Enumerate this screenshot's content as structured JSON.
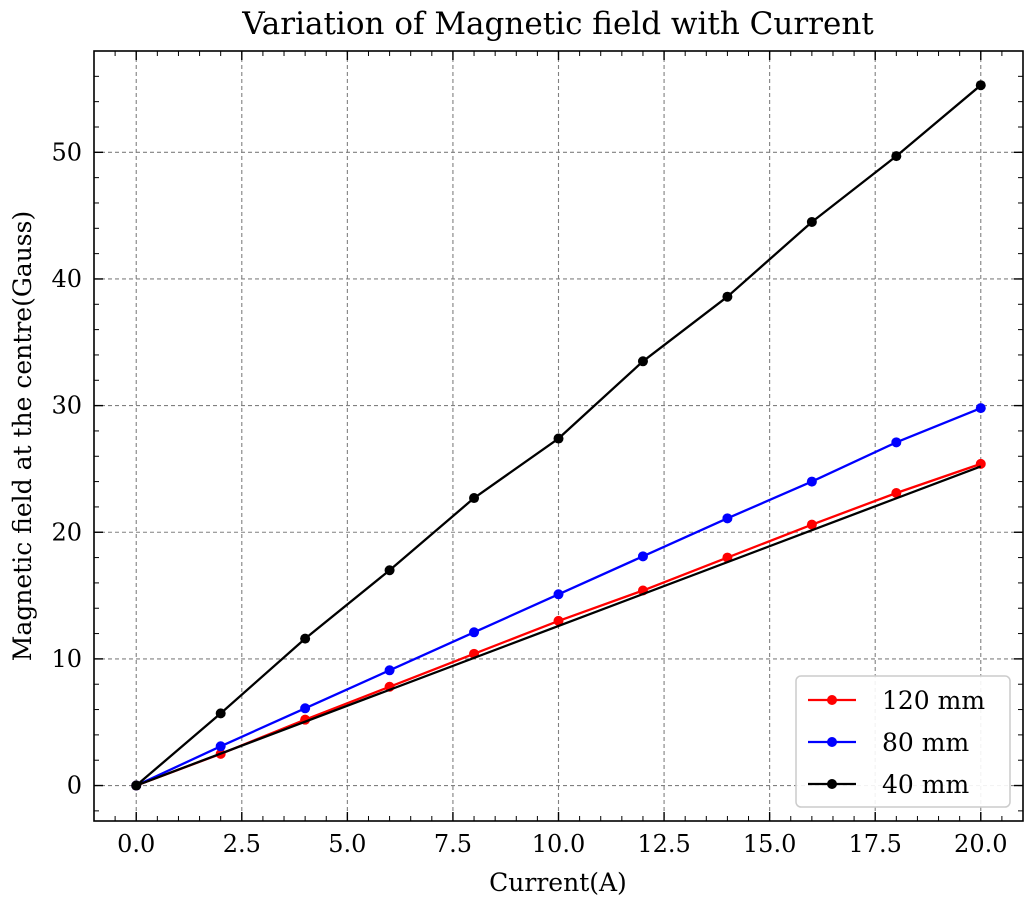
{
  "chart_data": {
    "type": "line",
    "title": "Variation of Magnetic field with Current",
    "xlabel": "Current(A)",
    "ylabel": "Magnetic field at the centre(Gauss)",
    "xlim": [
      -1,
      21
    ],
    "ylim": [
      -2.8,
      58
    ],
    "xticks": [
      0,
      2.5,
      5,
      7.5,
      10,
      12.5,
      15,
      17.5,
      20
    ],
    "xtick_labels": [
      "0.0",
      "2.5",
      "5.0",
      "7.5",
      "10.0",
      "12.5",
      "15.0",
      "17.5",
      "20.0"
    ],
    "yticks": [
      0,
      10,
      20,
      30,
      40,
      50
    ],
    "ytick_labels": [
      "0",
      "10",
      "20",
      "30",
      "40",
      "50"
    ],
    "grid": true,
    "legend_position": "bottom-right",
    "series": [
      {
        "name": "120 mm",
        "color": "#ff0000",
        "markers": true,
        "x": [
          0,
          2,
          4,
          6,
          8,
          10,
          12,
          14,
          16,
          18,
          20
        ],
        "y": [
          0,
          2.5,
          5.2,
          7.8,
          10.4,
          13.0,
          15.4,
          18.0,
          20.6,
          23.1,
          25.4
        ]
      },
      {
        "name": "80 mm",
        "color": "#0000ff",
        "markers": true,
        "x": [
          0,
          2,
          4,
          6,
          8,
          10,
          12,
          14,
          16,
          18,
          20
        ],
        "y": [
          0,
          3.1,
          6.1,
          9.1,
          12.1,
          15.1,
          18.1,
          21.1,
          24.0,
          27.1,
          29.8
        ]
      },
      {
        "name": "40 mm",
        "color": "#000000",
        "markers": true,
        "x": [
          0,
          2,
          4,
          6,
          8,
          10,
          12,
          14,
          16,
          18,
          20
        ],
        "y": [
          0,
          5.7,
          11.6,
          17.0,
          22.7,
          27.4,
          33.5,
          38.6,
          44.5,
          49.7,
          55.3
        ]
      },
      {
        "name": "",
        "color": "#000000",
        "markers": false,
        "x": [
          0,
          20
        ],
        "y": [
          0,
          25.2
        ]
      }
    ]
  }
}
